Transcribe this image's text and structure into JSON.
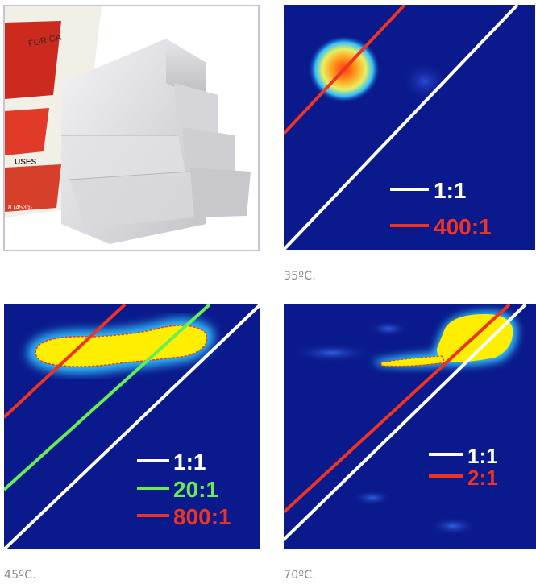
{
  "photo": {
    "box_text_fragments": [
      "FOR CA",
      "USES",
      "8 (453g)"
    ]
  },
  "panels": [
    {
      "caption": "35ºC.",
      "legend": [
        {
          "ratio": "1:1",
          "color": "#ffffff"
        },
        {
          "ratio": "400:1",
          "color": "#ee3322"
        }
      ]
    },
    {
      "caption": "45ºC.",
      "legend": [
        {
          "ratio": "1:1",
          "color": "#ffffff"
        },
        {
          "ratio": "20:1",
          "color": "#66ee55"
        },
        {
          "ratio": "800:1",
          "color": "#ee3322"
        }
      ]
    },
    {
      "caption": "70ºC.",
      "legend": [
        {
          "ratio": "1:1",
          "color": "#ffffff"
        },
        {
          "ratio": "2:1",
          "color": "#ee3322"
        }
      ]
    }
  ],
  "colors": {
    "heatmap_background": "#0a1a8c",
    "hot_core": "#ffee00",
    "hot_rim": "#ee3322"
  }
}
